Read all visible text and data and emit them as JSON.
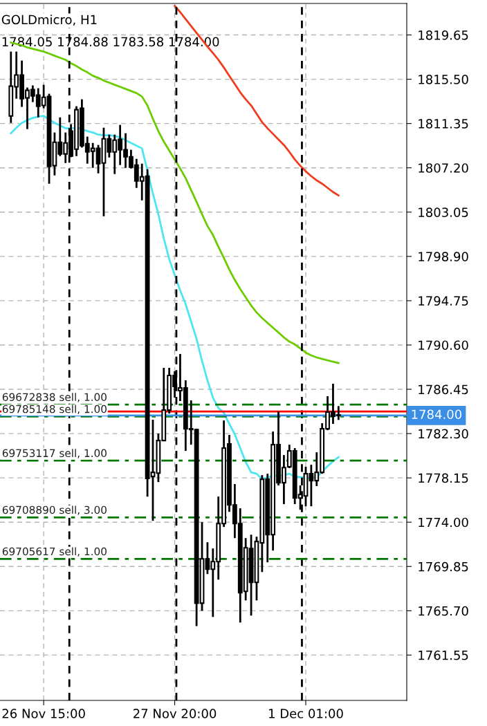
{
  "chart_data": {
    "type": "candlestick",
    "title": "GOLDmicro, H1",
    "subtitle": "1784.05 1784.88 1783.58 1784.00",
    "categories": [
      null,
      null,
      null,
      null,
      null,
      null,
      "26 Nov 15:00",
      null,
      null,
      null,
      null,
      null,
      null,
      null,
      null,
      null,
      null,
      null,
      null,
      null,
      null,
      null,
      null,
      null,
      null,
      null,
      null,
      null,
      null,
      null,
      "27 Nov 20:00",
      null,
      null,
      null,
      null,
      null,
      null,
      null,
      null,
      null,
      null,
      null,
      null,
      null,
      null,
      null,
      null,
      null,
      null,
      null,
      null,
      null,
      null,
      null,
      "1 Dec 01:00",
      null,
      null,
      null,
      null,
      null,
      null
    ],
    "ohlc": [
      [
        1812.06,
        1818.09,
        1811.41,
        1814.85
      ],
      [
        1814.79,
        1818.09,
        1813.68,
        1815.89
      ],
      [
        1815.89,
        1817.25,
        1812.91,
        1813.68
      ],
      [
        1813.75,
        1814.72,
        1810.83,
        1814.46
      ],
      [
        1814.53,
        1814.92,
        1813.36,
        1813.94
      ],
      [
        1814.01,
        1814.66,
        1811.93,
        1812.97
      ],
      [
        1813.04,
        1814.98,
        1812.78,
        1813.81
      ],
      [
        1813.88,
        1814.14,
        1805.71,
        1807.33
      ],
      [
        1807.4,
        1810.51,
        1806.49,
        1809.6
      ],
      [
        1809.6,
        1811.93,
        1808.3,
        1808.5
      ],
      [
        1808.5,
        1810.51,
        1807.65,
        1809.53
      ],
      [
        1810.64,
        1811.29,
        1808.2,
        1808.3
      ],
      [
        1808.95,
        1812.97,
        1808.3,
        1812.65
      ],
      [
        1812.78,
        1813.62,
        1809.1,
        1809.27
      ],
      [
        1809.47,
        1810.12,
        1807.59,
        1808.69
      ],
      [
        1808.76,
        1809.53,
        1807.2,
        1809.02
      ],
      [
        1809.02,
        1809.34,
        1806.68,
        1807.59
      ],
      [
        1807.65,
        1810.96,
        1802.66,
        1809.92
      ],
      [
        1809.92,
        1810.31,
        1808.17,
        1808.69
      ],
      [
        1808.69,
        1810.31,
        1806.62,
        1809.79
      ],
      [
        1809.86,
        1811.22,
        1807.46,
        1808.89
      ],
      [
        1808.89,
        1810.44,
        1807.2,
        1808.24
      ],
      [
        1808.24,
        1808.89,
        1807.14,
        1807.27
      ],
      [
        1807.46,
        1808.04,
        1805.32,
        1805.97
      ],
      [
        1805.97,
        1807.59,
        1804.15,
        1806.36
      ],
      [
        1806.42,
        1807.07,
        1776.4,
        1778.09
      ],
      [
        1778.28,
        1783.6,
        1774.13,
        1778.67
      ],
      [
        1778.6,
        1782.3,
        1777.76,
        1781.65
      ],
      [
        1781.65,
        1788.46,
        1781.59,
        1784.5
      ],
      [
        1784.5,
        1788.46,
        1784.18,
        1787.75
      ],
      [
        1787.75,
        1788.14,
        1785.67,
        1786.71
      ],
      [
        1786.32,
        1789.76,
        1785.35,
        1786.58
      ],
      [
        1786.58,
        1787.29,
        1780.68,
        1782.75
      ],
      [
        1782.75,
        1785.41,
        1781.26,
        1782.68
      ],
      [
        1782.68,
        1782.75,
        1764.27,
        1766.41
      ],
      [
        1766.41,
        1774.0,
        1765.7,
        1770.56
      ],
      [
        1770.56,
        1772.12,
        1769.14,
        1769.59
      ],
      [
        1769.59,
        1771.54,
        1765.12,
        1770.3
      ],
      [
        1770.3,
        1776.4,
        1768.62,
        1773.87
      ],
      [
        1773.87,
        1783.53,
        1773.55,
        1780.94
      ],
      [
        1781.33,
        1782.17,
        1774.97,
        1775.62
      ],
      [
        1775.62,
        1777.57,
        1772.51,
        1773.87
      ],
      [
        1773.87,
        1775.3,
        1764.6,
        1767.39
      ],
      [
        1767.52,
        1772.51,
        1766.67,
        1771.6
      ],
      [
        1771.54,
        1772.83,
        1765.25,
        1768.36
      ],
      [
        1768.36,
        1772.64,
        1766.67,
        1772.19
      ],
      [
        1772.06,
        1778.41,
        1769.33,
        1778.02
      ],
      [
        1778.02,
        1778.54,
        1770.24,
        1772.83
      ],
      [
        1772.83,
        1782.49,
        1771.34,
        1781.26
      ],
      [
        1781.26,
        1784.37,
        1777.44,
        1777.7
      ],
      [
        1777.7,
        1780.29,
        1775.69,
        1779.12
      ],
      [
        1779.19,
        1781.26,
        1779.06,
        1780.68
      ],
      [
        1780.68,
        1780.94,
        1775.69,
        1776.27
      ],
      [
        1776.27,
        1777.44,
        1775.17,
        1776.59
      ],
      [
        1776.46,
        1779.19,
        1775.49,
        1778.54
      ],
      [
        1778.54,
        1779.38,
        1775.49,
        1777.89
      ],
      [
        1777.89,
        1780.55,
        1777.38,
        1778.67
      ],
      [
        1778.67,
        1783.27,
        1778.54,
        1782.75
      ],
      [
        1782.75,
        1785.8,
        1782.62,
        1784.31
      ],
      [
        1784.31,
        1786.97,
        1783.21,
        1783.92
      ],
      [
        1784.05,
        1784.88,
        1783.58,
        1784.0
      ]
    ],
    "series": [
      {
        "type": "line",
        "color": "#f03c1e",
        "values": [
          null,
          null,
          null,
          null,
          null,
          null,
          null,
          null,
          null,
          null,
          null,
          null,
          null,
          null,
          null,
          null,
          null,
          null,
          null,
          null,
          null,
          null,
          null,
          null,
          null,
          null,
          null,
          null,
          null,
          null,
          1822.37,
          1821.79,
          1821.14,
          1820.49,
          1819.84,
          1819.2,
          1818.55,
          1817.96,
          1817.32,
          1816.6,
          1815.82,
          1815.05,
          1814.27,
          1813.62,
          1813.04,
          1812.26,
          1811.48,
          1810.9,
          1810.38,
          1809.86,
          1809.34,
          1808.69,
          1807.98,
          1807.39,
          1806.88,
          1806.42,
          1806.03,
          1805.71,
          1805.32,
          1804.93,
          1804.61
        ]
      },
      {
        "type": "line",
        "color": "#6ccc00",
        "values": [
          1818.94,
          1818.81,
          1818.68,
          1818.48,
          1818.35,
          1818.22,
          1818.09,
          1817.9,
          1817.7,
          1817.51,
          1817.32,
          1816.99,
          1816.73,
          1816.41,
          1816.15,
          1815.82,
          1815.63,
          1815.37,
          1815.18,
          1814.98,
          1814.79,
          1814.59,
          1814.4,
          1814.2,
          1813.88,
          1813.04,
          1811.8,
          1810.64,
          1809.66,
          1808.82,
          1807.98,
          1807.14,
          1806.23,
          1805.12,
          1804.02,
          1802.86,
          1801.75,
          1800.91,
          1799.81,
          1798.77,
          1797.67,
          1796.7,
          1795.85,
          1795.07,
          1794.3,
          1793.65,
          1793.13,
          1792.67,
          1792.22,
          1791.77,
          1791.31,
          1790.92,
          1790.66,
          1790.28,
          1789.89,
          1789.63,
          1789.43,
          1789.3,
          1789.17,
          1789.04,
          1788.91
        ]
      },
      {
        "type": "line",
        "color": "#4ce6f2",
        "values": [
          1810.44,
          1810.96,
          1811.41,
          1811.67,
          1811.87,
          1812.0,
          1812.06,
          1811.74,
          1811.41,
          1811.16,
          1810.9,
          1810.9,
          1810.96,
          1810.83,
          1810.64,
          1810.51,
          1810.31,
          1810.25,
          1810.25,
          1810.18,
          1810.05,
          1809.79,
          1809.53,
          1809.27,
          1809.02,
          1806.94,
          1804.8,
          1802.86,
          1800.59,
          1798.64,
          1797.15,
          1795.72,
          1794.43,
          1792.8,
          1791.18,
          1789.11,
          1787.29,
          1785.67,
          1784.7,
          1784.24,
          1783.21,
          1782.24,
          1780.94,
          1779.64,
          1778.67,
          1778.54,
          1778.02,
          1778.21,
          1778.34,
          1778.34,
          1778.41,
          1778.54,
          1778.28,
          1778.21,
          1778.15,
          1778.15,
          1778.21,
          1778.73,
          1779.25,
          1779.71,
          1780.09
        ]
      }
    ],
    "ylim": [
      1757.3,
      1822.6
    ],
    "yticks": [
      1819.65,
      {
        "value": 1815.5,
        "label": "1815.50"
      },
      1811.35,
      {
        "value": 1807.2,
        "label": "1807.20"
      },
      1803.05,
      {
        "value": 1798.9,
        "label": "1798.90"
      },
      1794.75,
      {
        "value": 1790.6,
        "label": "1790.60"
      },
      1786.45,
      {
        "value": 1782.3,
        "label": "1782.30"
      },
      1778.15,
      {
        "value": 1774.0,
        "label": "1774.00"
      },
      {
        "value": 1765.7,
        "label": "1765.70"
      },
      1769.85,
      1761.55
    ],
    "ref_lines": [
      {
        "axis": "y",
        "value": 1785.02,
        "label": "69672838 sell, 1.00",
        "color": "#007800",
        "line_style": "dashdot"
      },
      {
        "axis": "y",
        "value": 1783.9,
        "label": "69785148 sell, 1.00",
        "color": "#007800",
        "line_style": "dashdot"
      },
      {
        "axis": "y",
        "value": 1779.77,
        "label": "69753117 sell, 1.00",
        "color": "#007800",
        "line_style": "dashdot"
      },
      {
        "axis": "y",
        "value": 1774.45,
        "label": "69708890 sell, 3.00",
        "color": "#007800",
        "line_style": "dashdot"
      },
      {
        "axis": "y",
        "value": 1770.56,
        "label": "69705617 sell, 1.00",
        "color": "#007800",
        "line_style": "dashdot"
      },
      {
        "axis": "y",
        "value": 1784.37,
        "color": "#ff0000",
        "line_style": "solid"
      },
      {
        "axis": "y",
        "value": 1784.0,
        "label": "1784.00",
        "color": "#3a8ee6",
        "line_style": "solid"
      }
    ],
    "grid": true
  }
}
